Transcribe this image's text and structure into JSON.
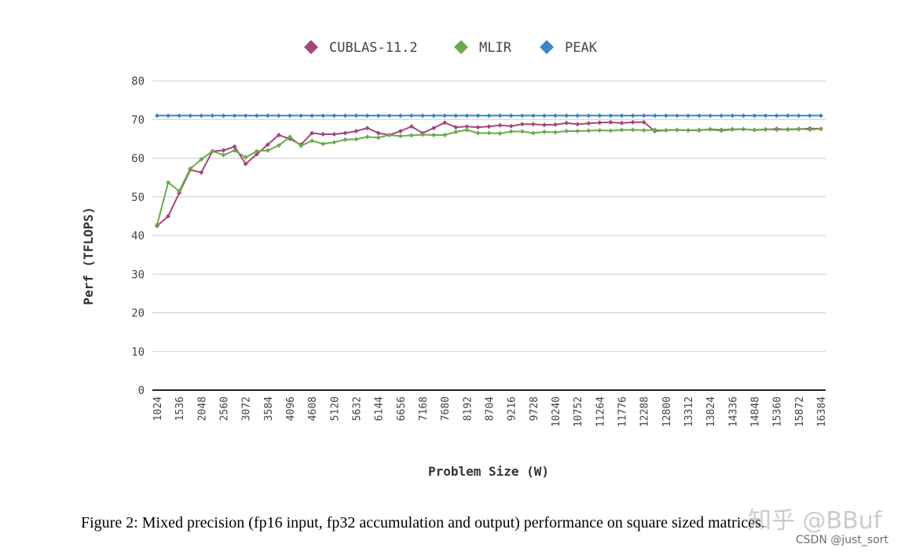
{
  "chart_data": {
    "type": "line",
    "title": "",
    "xlabel": "Problem Size (W)",
    "ylabel": "Perf (TFLOPS)",
    "ylim": [
      0,
      80
    ],
    "yticks": [
      0,
      10,
      20,
      30,
      40,
      50,
      60,
      70,
      80
    ],
    "grid": true,
    "legend_position": "top",
    "x": [
      1024,
      1280,
      1536,
      1792,
      2048,
      2304,
      2560,
      2816,
      3072,
      3328,
      3584,
      3840,
      4096,
      4352,
      4608,
      4864,
      5120,
      5376,
      5632,
      5888,
      6144,
      6400,
      6656,
      6912,
      7168,
      7424,
      7680,
      7936,
      8192,
      8448,
      8704,
      8960,
      9216,
      9472,
      9728,
      9984,
      10240,
      10496,
      10752,
      11008,
      11264,
      11520,
      11776,
      12032,
      12288,
      12544,
      12800,
      13056,
      13312,
      13568,
      13824,
      14080,
      14336,
      14592,
      14848,
      15104,
      15360,
      15616,
      15872,
      16128,
      16384
    ],
    "xtick_labels": [
      "1024",
      "1536",
      "2048",
      "2560",
      "3072",
      "3584",
      "4096",
      "4608",
      "5120",
      "5632",
      "6144",
      "6656",
      "7168",
      "7680",
      "8192",
      "8704",
      "9216",
      "9728",
      "10240",
      "10752",
      "11264",
      "11776",
      "12288",
      "12800",
      "13312",
      "13824",
      "14336",
      "14848",
      "15360",
      "15872",
      "16384"
    ],
    "series": [
      {
        "name": "CUBLAS-11.2",
        "color": "#a3477a",
        "values": [
          42.5,
          45.0,
          51.0,
          57.0,
          56.3,
          61.8,
          62.0,
          63.0,
          58.5,
          61.0,
          63.5,
          66.0,
          65.0,
          63.5,
          66.5,
          66.2,
          66.2,
          66.5,
          67.0,
          67.8,
          66.5,
          66.0,
          67.0,
          68.2,
          66.5,
          67.8,
          69.2,
          68.0,
          68.2,
          68.0,
          68.2,
          68.5,
          68.3,
          68.8,
          68.8,
          68.6,
          68.7,
          69.1,
          68.8,
          69.0,
          69.2,
          69.3,
          69.1,
          69.3,
          69.3,
          67.0,
          67.2,
          67.3,
          67.2,
          67.2,
          67.5,
          67.3,
          67.5,
          67.5,
          67.3,
          67.4,
          67.6,
          67.4,
          67.5,
          67.7,
          67.6
        ]
      },
      {
        "name": "MLIR",
        "color": "#6aaa4f",
        "values": [
          42.8,
          53.7,
          51.5,
          57.3,
          59.7,
          61.8,
          60.8,
          62.0,
          60.2,
          61.8,
          62.0,
          63.3,
          65.5,
          63.2,
          64.5,
          63.7,
          64.1,
          64.8,
          64.9,
          65.5,
          65.3,
          66.0,
          65.7,
          65.9,
          66.1,
          66.0,
          66.0,
          66.8,
          67.3,
          66.5,
          66.5,
          66.4,
          66.9,
          66.9,
          66.5,
          66.8,
          66.7,
          67.0,
          67.0,
          67.1,
          67.2,
          67.1,
          67.3,
          67.3,
          67.2,
          67.3,
          67.2,
          67.3,
          67.2,
          67.3,
          67.4,
          67.1,
          67.4,
          67.5,
          67.3,
          67.5,
          67.3,
          67.5,
          67.6,
          67.4,
          67.6
        ]
      },
      {
        "name": "PEAK",
        "color": "#3d85c6",
        "values": [
          71,
          71,
          71,
          71,
          71,
          71,
          71,
          71,
          71,
          71,
          71,
          71,
          71,
          71,
          71,
          71,
          71,
          71,
          71,
          71,
          71,
          71,
          71,
          71,
          71,
          71,
          71,
          71,
          71,
          71,
          71,
          71,
          71,
          71,
          71,
          71,
          71,
          71,
          71,
          71,
          71,
          71,
          71,
          71,
          71,
          71,
          71,
          71,
          71,
          71,
          71,
          71,
          71,
          71,
          71,
          71,
          71,
          71,
          71,
          71,
          71
        ]
      }
    ]
  },
  "caption": "Figure 2: Mixed precision (fp16 input, fp32 accumulation and output) performance on square sized matrices.",
  "watermark": {
    "zhihu": "知乎 @BBuf",
    "csdn": "CSDN @just_sort"
  }
}
